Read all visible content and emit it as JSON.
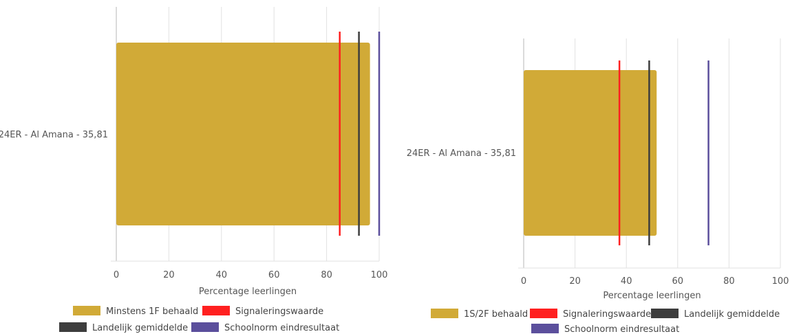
{
  "colors": {
    "bar": "#d1aa37",
    "signal": "#ff2020",
    "national": "#3d3d3d",
    "norm": "#5b4f9c",
    "grid": "#e2e2e2",
    "axis": "#cfcfcf",
    "text": "#555555"
  },
  "chart_data": [
    {
      "type": "bar",
      "orientation": "horizontal",
      "categories": [
        "24ER - Al Amana - 35,81"
      ],
      "series": [
        {
          "name": "Minstens 1F behaald",
          "values": [
            96.5
          ],
          "kind": "bar"
        }
      ],
      "reference_lines": [
        {
          "name": "Signaleringswaarde",
          "value": 85,
          "color_key": "signal"
        },
        {
          "name": "Landelijk gemiddelde",
          "value": 92.3,
          "color_key": "national"
        },
        {
          "name": "Schoolnorm eindresultaat",
          "value": 100,
          "color_key": "norm"
        }
      ],
      "xlabel": "Percentage leerlingen",
      "xlim": [
        0,
        100
      ],
      "xticks": [
        "0",
        "20",
        "40",
        "60",
        "80",
        "100"
      ],
      "grid": true,
      "legend_placement": "bottom",
      "legend_rows": [
        [
          "Minstens 1F behaald",
          "Signaleringswaarde"
        ],
        [
          "Landelijk gemiddelde",
          "Schoolnorm eindresultaat"
        ]
      ]
    },
    {
      "type": "bar",
      "orientation": "horizontal",
      "categories": [
        "24ER - Al Amana - 35,81"
      ],
      "series": [
        {
          "name": "1S/2F behaald",
          "values": [
            51.8
          ],
          "kind": "bar"
        }
      ],
      "reference_lines": [
        {
          "name": "Signaleringswaarde",
          "value": 37.3,
          "color_key": "signal"
        },
        {
          "name": "Landelijk gemiddelde",
          "value": 48.9,
          "color_key": "national"
        },
        {
          "name": "Schoolnorm eindresultaat",
          "value": 72,
          "color_key": "norm"
        }
      ],
      "xlabel": "Percentage leerlingen",
      "xlim": [
        0,
        100
      ],
      "xticks": [
        "0",
        "20",
        "40",
        "60",
        "80",
        "100"
      ],
      "grid": true,
      "legend_placement": "bottom",
      "legend_rows": [
        [
          "1S/2F behaald",
          "Signaleringswaarde",
          "Landelijk gemiddelde"
        ],
        [
          "Schoolnorm eindresultaat"
        ]
      ]
    }
  ]
}
